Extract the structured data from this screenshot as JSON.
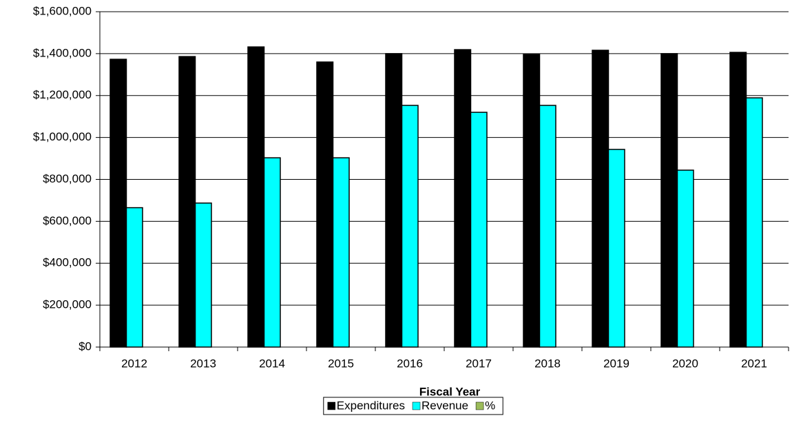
{
  "chart_data": {
    "type": "bar",
    "x_label": "Fiscal Year",
    "categories": [
      "2012",
      "2013",
      "2014",
      "2015",
      "2016",
      "2017",
      "2018",
      "2019",
      "2020",
      "2021"
    ],
    "series": [
      {
        "name": "Expenditures",
        "color": "#000000",
        "values": [
          1373000,
          1386000,
          1432000,
          1360000,
          1400000,
          1419000,
          1396000,
          1416000,
          1400000,
          1406000
        ]
      },
      {
        "name": "Revenue",
        "color": "#00ffff",
        "values": [
          665000,
          687000,
          903000,
          903000,
          1153000,
          1120000,
          1153000,
          943000,
          844000,
          1189000
        ]
      },
      {
        "name": "%",
        "color": "#9bbb59",
        "values": [
          null,
          null,
          null,
          null,
          null,
          null,
          null,
          null,
          null,
          null
        ]
      }
    ],
    "ylim": [
      0,
      1600000
    ],
    "yticks": [
      {
        "value": 0,
        "label": "$0"
      },
      {
        "value": 200000,
        "label": "$200,000"
      },
      {
        "value": 400000,
        "label": "$400,000"
      },
      {
        "value": 600000,
        "label": "$600,000"
      },
      {
        "value": 800000,
        "label": "$800,000"
      },
      {
        "value": 1000000,
        "label": "$1,000,000"
      },
      {
        "value": 1200000,
        "label": "$1,200,000"
      },
      {
        "value": 1400000,
        "label": "$1,400,000"
      },
      {
        "value": 1600000,
        "label": "$1,600,000"
      }
    ],
    "grid": true,
    "legend": "bottom"
  }
}
